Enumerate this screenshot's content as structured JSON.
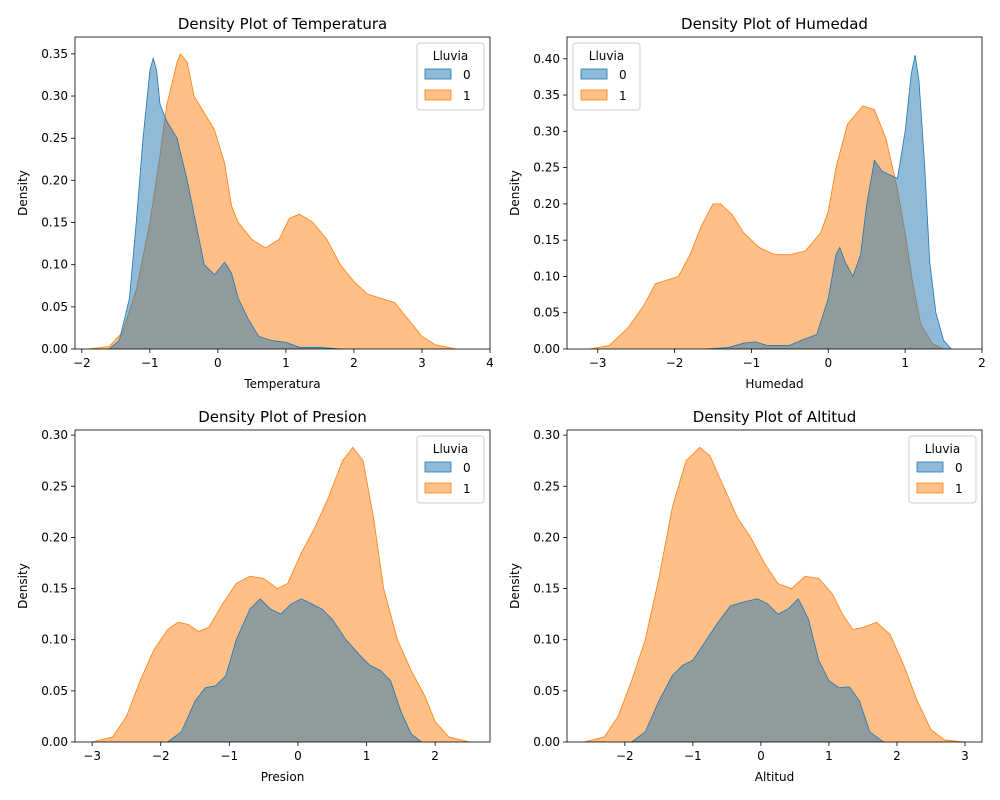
{
  "chart_data": [
    {
      "type": "area",
      "title": "Density Plot of Temperatura",
      "xlabel": "Temperatura",
      "ylabel": "Density",
      "xlim": [
        -2.1,
        4.0
      ],
      "ylim": [
        0,
        0.37
      ],
      "xticks": [
        -2,
        -1,
        0,
        1,
        2,
        3,
        4
      ],
      "yticks": [
        0.0,
        0.05,
        0.1,
        0.15,
        0.2,
        0.25,
        0.3,
        0.35
      ],
      "legend": {
        "title": "Lluvia",
        "position": "top-right",
        "entries": [
          "0",
          "1"
        ]
      },
      "series": [
        {
          "name": "1",
          "color": "#ff7f0e",
          "points": [
            [
              -1.9,
              0
            ],
            [
              -1.6,
              0.003
            ],
            [
              -1.4,
              0.02
            ],
            [
              -1.2,
              0.07
            ],
            [
              -1.0,
              0.15
            ],
            [
              -0.85,
              0.23
            ],
            [
              -0.75,
              0.29
            ],
            [
              -0.6,
              0.34
            ],
            [
              -0.55,
              0.35
            ],
            [
              -0.45,
              0.34
            ],
            [
              -0.35,
              0.3
            ],
            [
              -0.2,
              0.28
            ],
            [
              -0.05,
              0.26
            ],
            [
              0.1,
              0.22
            ],
            [
              0.2,
              0.17
            ],
            [
              0.3,
              0.15
            ],
            [
              0.5,
              0.13
            ],
            [
              0.7,
              0.12
            ],
            [
              0.9,
              0.13
            ],
            [
              1.05,
              0.155
            ],
            [
              1.2,
              0.16
            ],
            [
              1.4,
              0.15
            ],
            [
              1.6,
              0.13
            ],
            [
              1.8,
              0.1
            ],
            [
              2.0,
              0.08
            ],
            [
              2.2,
              0.065
            ],
            [
              2.4,
              0.06
            ],
            [
              2.6,
              0.055
            ],
            [
              2.8,
              0.035
            ],
            [
              3.0,
              0.015
            ],
            [
              3.2,
              0.005
            ],
            [
              3.5,
              0
            ]
          ]
        },
        {
          "name": "0",
          "color": "#1f77b4",
          "points": [
            [
              -1.6,
              0
            ],
            [
              -1.45,
              0.01
            ],
            [
              -1.3,
              0.06
            ],
            [
              -1.2,
              0.15
            ],
            [
              -1.1,
              0.25
            ],
            [
              -1.0,
              0.33
            ],
            [
              -0.95,
              0.345
            ],
            [
              -0.9,
              0.33
            ],
            [
              -0.85,
              0.29
            ],
            [
              -0.75,
              0.27
            ],
            [
              -0.6,
              0.25
            ],
            [
              -0.45,
              0.2
            ],
            [
              -0.3,
              0.14
            ],
            [
              -0.2,
              0.1
            ],
            [
              -0.05,
              0.088
            ],
            [
              0.1,
              0.103
            ],
            [
              0.2,
              0.09
            ],
            [
              0.3,
              0.06
            ],
            [
              0.45,
              0.035
            ],
            [
              0.6,
              0.015
            ],
            [
              0.8,
              0.01
            ],
            [
              1.0,
              0.008
            ],
            [
              1.2,
              0.002
            ],
            [
              1.5,
              0.002
            ],
            [
              1.8,
              0
            ]
          ]
        }
      ]
    },
    {
      "type": "area",
      "title": "Density Plot of Humedad",
      "xlabel": "Humedad",
      "ylabel": "Density",
      "xlim": [
        -3.4,
        2.0
      ],
      "ylim": [
        0,
        0.43
      ],
      "xticks": [
        -3,
        -2,
        -1,
        0,
        1,
        2
      ],
      "yticks": [
        0.0,
        0.05,
        0.1,
        0.15,
        0.2,
        0.25,
        0.3,
        0.35,
        0.4
      ],
      "legend": {
        "title": "Lluvia",
        "position": "top-left",
        "entries": [
          "0",
          "1"
        ]
      },
      "series": [
        {
          "name": "1",
          "color": "#ff7f0e",
          "points": [
            [
              -3.1,
              0
            ],
            [
              -2.85,
              0.005
            ],
            [
              -2.6,
              0.03
            ],
            [
              -2.4,
              0.06
            ],
            [
              -2.25,
              0.09
            ],
            [
              -2.1,
              0.095
            ],
            [
              -1.95,
              0.1
            ],
            [
              -1.8,
              0.13
            ],
            [
              -1.65,
              0.17
            ],
            [
              -1.5,
              0.2
            ],
            [
              -1.4,
              0.2
            ],
            [
              -1.25,
              0.185
            ],
            [
              -1.1,
              0.16
            ],
            [
              -0.9,
              0.14
            ],
            [
              -0.7,
              0.13
            ],
            [
              -0.5,
              0.13
            ],
            [
              -0.3,
              0.135
            ],
            [
              -0.1,
              0.16
            ],
            [
              0.0,
              0.19
            ],
            [
              0.1,
              0.25
            ],
            [
              0.25,
              0.31
            ],
            [
              0.45,
              0.335
            ],
            [
              0.6,
              0.33
            ],
            [
              0.75,
              0.29
            ],
            [
              0.9,
              0.22
            ],
            [
              1.0,
              0.16
            ],
            [
              1.1,
              0.09
            ],
            [
              1.2,
              0.035
            ],
            [
              1.35,
              0.008
            ],
            [
              1.5,
              0
            ]
          ]
        },
        {
          "name": "0",
          "color": "#1f77b4",
          "points": [
            [
              -1.6,
              0
            ],
            [
              -1.3,
              0.002
            ],
            [
              -1.1,
              0.008
            ],
            [
              -0.95,
              0.01
            ],
            [
              -0.8,
              0.005
            ],
            [
              -0.5,
              0.005
            ],
            [
              -0.35,
              0.012
            ],
            [
              -0.15,
              0.02
            ],
            [
              0.0,
              0.07
            ],
            [
              0.1,
              0.13
            ],
            [
              0.15,
              0.14
            ],
            [
              0.22,
              0.12
            ],
            [
              0.32,
              0.1
            ],
            [
              0.42,
              0.13
            ],
            [
              0.5,
              0.2
            ],
            [
              0.6,
              0.26
            ],
            [
              0.7,
              0.245
            ],
            [
              0.8,
              0.24
            ],
            [
              0.9,
              0.235
            ],
            [
              1.0,
              0.3
            ],
            [
              1.08,
              0.38
            ],
            [
              1.13,
              0.405
            ],
            [
              1.18,
              0.37
            ],
            [
              1.25,
              0.26
            ],
            [
              1.32,
              0.12
            ],
            [
              1.4,
              0.05
            ],
            [
              1.5,
              0.012
            ],
            [
              1.6,
              0
            ]
          ]
        }
      ]
    },
    {
      "type": "area",
      "title": "Density Plot of Presion",
      "xlabel": "Presion",
      "ylabel": "Density",
      "xlim": [
        -3.25,
        2.8
      ],
      "ylim": [
        0,
        0.305
      ],
      "xticks": [
        -3,
        -2,
        -1,
        0,
        1,
        2
      ],
      "yticks": [
        0.0,
        0.05,
        0.1,
        0.15,
        0.2,
        0.25,
        0.3
      ],
      "legend": {
        "title": "Lluvia",
        "position": "top-right",
        "entries": [
          "0",
          "1"
        ]
      },
      "series": [
        {
          "name": "1",
          "color": "#ff7f0e",
          "points": [
            [
              -3.0,
              0
            ],
            [
              -2.7,
              0.005
            ],
            [
              -2.5,
              0.025
            ],
            [
              -2.3,
              0.06
            ],
            [
              -2.1,
              0.09
            ],
            [
              -1.9,
              0.11
            ],
            [
              -1.75,
              0.117
            ],
            [
              -1.6,
              0.115
            ],
            [
              -1.45,
              0.108
            ],
            [
              -1.3,
              0.112
            ],
            [
              -1.1,
              0.135
            ],
            [
              -0.9,
              0.155
            ],
            [
              -0.7,
              0.162
            ],
            [
              -0.5,
              0.16
            ],
            [
              -0.3,
              0.15
            ],
            [
              -0.15,
              0.155
            ],
            [
              0.05,
              0.185
            ],
            [
              0.25,
              0.21
            ],
            [
              0.45,
              0.24
            ],
            [
              0.65,
              0.275
            ],
            [
              0.8,
              0.288
            ],
            [
              0.95,
              0.275
            ],
            [
              1.1,
              0.22
            ],
            [
              1.25,
              0.15
            ],
            [
              1.45,
              0.1
            ],
            [
              1.65,
              0.07
            ],
            [
              1.85,
              0.045
            ],
            [
              2.0,
              0.02
            ],
            [
              2.2,
              0.005
            ],
            [
              2.5,
              0
            ]
          ]
        },
        {
          "name": "0",
          "color": "#1f77b4",
          "points": [
            [
              -1.9,
              0
            ],
            [
              -1.7,
              0.01
            ],
            [
              -1.5,
              0.04
            ],
            [
              -1.35,
              0.053
            ],
            [
              -1.2,
              0.055
            ],
            [
              -1.05,
              0.065
            ],
            [
              -0.9,
              0.1
            ],
            [
              -0.7,
              0.13
            ],
            [
              -0.55,
              0.14
            ],
            [
              -0.4,
              0.13
            ],
            [
              -0.25,
              0.125
            ],
            [
              -0.1,
              0.135
            ],
            [
              0.05,
              0.14
            ],
            [
              0.2,
              0.135
            ],
            [
              0.35,
              0.13
            ],
            [
              0.5,
              0.12
            ],
            [
              0.7,
              0.1
            ],
            [
              0.9,
              0.085
            ],
            [
              1.05,
              0.075
            ],
            [
              1.2,
              0.07
            ],
            [
              1.35,
              0.06
            ],
            [
              1.5,
              0.03
            ],
            [
              1.65,
              0.008
            ],
            [
              1.8,
              0
            ]
          ]
        }
      ]
    },
    {
      "type": "area",
      "title": "Density Plot of Altitud",
      "xlabel": "Altitud",
      "ylabel": "Density",
      "xlim": [
        -2.85,
        3.25
      ],
      "ylim": [
        0,
        0.305
      ],
      "xticks": [
        -2,
        -1,
        0,
        1,
        2,
        3
      ],
      "yticks": [
        0.0,
        0.05,
        0.1,
        0.15,
        0.2,
        0.25,
        0.3
      ],
      "legend": {
        "title": "Lluvia",
        "position": "top-right",
        "entries": [
          "0",
          "1"
        ]
      },
      "series": [
        {
          "name": "1",
          "color": "#ff7f0e",
          "points": [
            [
              -2.6,
              0
            ],
            [
              -2.3,
              0.005
            ],
            [
              -2.1,
              0.025
            ],
            [
              -1.9,
              0.06
            ],
            [
              -1.7,
              0.1
            ],
            [
              -1.5,
              0.16
            ],
            [
              -1.3,
              0.23
            ],
            [
              -1.1,
              0.275
            ],
            [
              -0.9,
              0.288
            ],
            [
              -0.75,
              0.28
            ],
            [
              -0.55,
              0.25
            ],
            [
              -0.35,
              0.22
            ],
            [
              -0.15,
              0.2
            ],
            [
              0.05,
              0.175
            ],
            [
              0.25,
              0.155
            ],
            [
              0.45,
              0.15
            ],
            [
              0.65,
              0.162
            ],
            [
              0.85,
              0.16
            ],
            [
              1.05,
              0.145
            ],
            [
              1.2,
              0.125
            ],
            [
              1.35,
              0.11
            ],
            [
              1.5,
              0.112
            ],
            [
              1.7,
              0.117
            ],
            [
              1.9,
              0.105
            ],
            [
              2.1,
              0.075
            ],
            [
              2.3,
              0.04
            ],
            [
              2.5,
              0.012
            ],
            [
              2.7,
              0.002
            ],
            [
              3.0,
              0
            ]
          ]
        },
        {
          "name": "0",
          "color": "#1f77b4",
          "points": [
            [
              -1.9,
              0
            ],
            [
              -1.7,
              0.01
            ],
            [
              -1.5,
              0.04
            ],
            [
              -1.3,
              0.065
            ],
            [
              -1.15,
              0.075
            ],
            [
              -1.0,
              0.08
            ],
            [
              -0.85,
              0.095
            ],
            [
              -0.65,
              0.115
            ],
            [
              -0.45,
              0.133
            ],
            [
              -0.25,
              0.137
            ],
            [
              -0.05,
              0.14
            ],
            [
              0.1,
              0.135
            ],
            [
              0.25,
              0.125
            ],
            [
              0.4,
              0.13
            ],
            [
              0.55,
              0.14
            ],
            [
              0.7,
              0.12
            ],
            [
              0.85,
              0.08
            ],
            [
              1.0,
              0.06
            ],
            [
              1.15,
              0.053
            ],
            [
              1.3,
              0.054
            ],
            [
              1.45,
              0.04
            ],
            [
              1.6,
              0.01
            ],
            [
              1.8,
              0
            ]
          ]
        }
      ]
    }
  ]
}
